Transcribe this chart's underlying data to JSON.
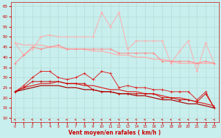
{
  "x": [
    0,
    1,
    2,
    3,
    4,
    5,
    6,
    7,
    8,
    9,
    10,
    11,
    12,
    13,
    14,
    15,
    16,
    17,
    18,
    19,
    20,
    21,
    22,
    23
  ],
  "background_color": "#c8eeed",
  "grid_color": "#b0d8d0",
  "xlabel": "Vent moyen/en rafales ( km/h )",
  "xlabel_color": "#cc0000",
  "tick_color": "#cc0000",
  "ylim": [
    8,
    67
  ],
  "yticks": [
    10,
    15,
    20,
    25,
    30,
    35,
    40,
    45,
    50,
    55,
    60,
    65
  ],
  "series": {
    "light_pink_scatter": [
      47,
      41,
      44,
      50,
      51,
      50,
      50,
      50,
      50,
      50,
      62,
      55,
      62,
      44,
      48,
      48,
      48,
      48,
      37,
      43,
      48,
      33,
      47,
      37
    ],
    "light_pink_trend": [
      47,
      46,
      46,
      46,
      45,
      45,
      44,
      44,
      44,
      43,
      43,
      42,
      41,
      41,
      40,
      40,
      39,
      39,
      38,
      37,
      37,
      37,
      37,
      37
    ],
    "medium_pink_scatter": [
      37,
      41,
      45,
      44,
      45,
      46,
      44,
      44,
      44,
      44,
      44,
      44,
      42,
      42,
      42,
      42,
      42,
      38,
      38,
      38,
      38,
      37,
      38,
      37
    ],
    "red_scatter": [
      23,
      26,
      30,
      33,
      33,
      30,
      29,
      30,
      32,
      29,
      33,
      32,
      25,
      26,
      25,
      25,
      24,
      24,
      23,
      23,
      23,
      19,
      23,
      15
    ],
    "red_trend": [
      23,
      25,
      26,
      27,
      27,
      28,
      27,
      27,
      26,
      26,
      25,
      24,
      24,
      23,
      23,
      22,
      22,
      21,
      20,
      20,
      19,
      18,
      17,
      16
    ],
    "dark_red_scatter": [
      23,
      25,
      28,
      28,
      28,
      28,
      27,
      27,
      27,
      24,
      23,
      23,
      22,
      22,
      22,
      22,
      22,
      20,
      20,
      19,
      19,
      18,
      22,
      15
    ],
    "darkest_red_trend": [
      23,
      24,
      25,
      26,
      26,
      26,
      25,
      25,
      24,
      24,
      23,
      23,
      22,
      22,
      21,
      21,
      20,
      19,
      19,
      18,
      17,
      17,
      16,
      15
    ]
  },
  "colors": {
    "light_pink": "#ffaaaa",
    "medium_pink": "#ff8888",
    "red": "#dd2222",
    "dark_red": "#cc0000",
    "darkest_red": "#aa0000",
    "arrow": "#cc2222"
  }
}
